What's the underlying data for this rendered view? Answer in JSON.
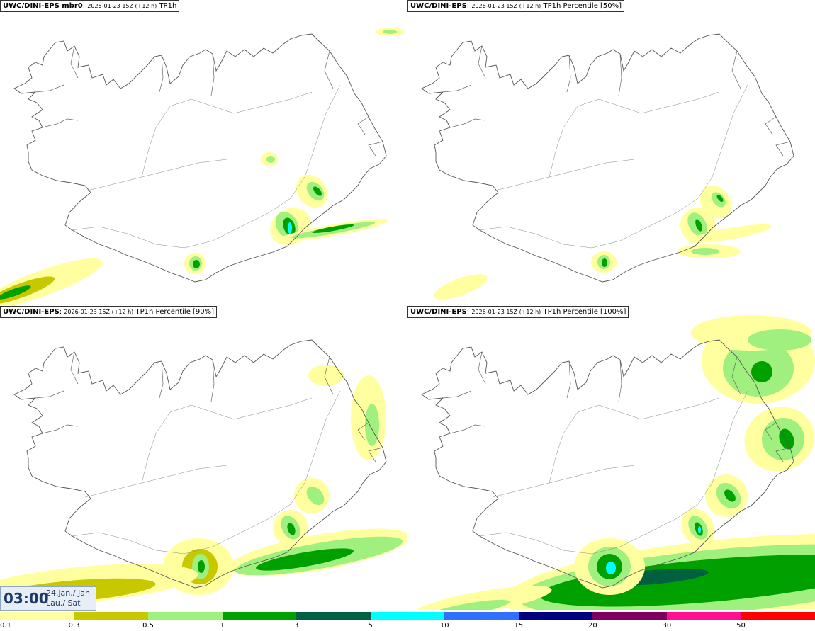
{
  "panels": [
    {
      "title_bold": "UWC/DINI-EPS mbr0",
      "title_date": "2026-01-23 15Z (+12 h)",
      "title_field": "TP1h"
    },
    {
      "title_bold": "UWC/DINI-EPS",
      "title_date": "2026-01-23 15Z (+12 h)",
      "title_field": "TP1h Percentile [50%]"
    },
    {
      "title_bold": "UWC/DINI-EPS",
      "title_date": "2026-01-23 15Z (+12 h)",
      "title_field": "TP1h Percentile [90%]"
    },
    {
      "title_bold": "UWC/DINI-EPS",
      "title_date": "2026-01-23 15Z (+12 h)",
      "title_field": "TP1h Percentile [100%]"
    }
  ],
  "valid_time": {
    "time": "03:00",
    "date_line1": "24.jan./ Jan",
    "date_line2": "Lau./ Sat"
  },
  "legend": {
    "ticks": [
      "0.1",
      "0.3",
      "0.5",
      "1",
      "3",
      "5",
      "10",
      "15",
      "20",
      "30",
      "50"
    ],
    "colors": [
      "#ffffa0",
      "#c8c800",
      "#a0f080",
      "#00a000",
      "#006040",
      "#00ffff",
      "#3070ff",
      "#000080",
      "#800060",
      "#ff1090",
      "#ff0000"
    ]
  }
}
